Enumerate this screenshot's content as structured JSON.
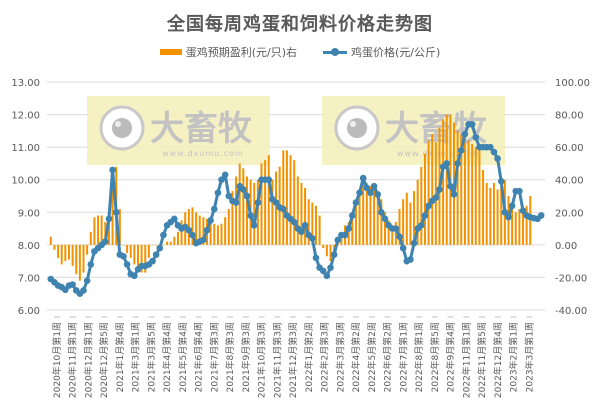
{
  "title": "全国每周鸡蛋和饲料价格走势图",
  "legend": {
    "bar_label": "蛋鸡预期盈利(元/只)右",
    "line_label": "鸡蛋价格(元/公斤)"
  },
  "watermark": {
    "text": "大畜牧",
    "url_text": "www.dxumu.com"
  },
  "colors": {
    "bar": "#F39200",
    "line": "#3F83B0",
    "grid": "#D9D9D9",
    "watermark_bg": "#F5EEB8"
  },
  "chart_data": {
    "type": "bar+line",
    "title": "全国每周鸡蛋和饲料价格走势图",
    "left_axis": {
      "label": "鸡蛋价格(元/公斤)",
      "min": 6,
      "max": 13,
      "ticks": [
        "6.00",
        "7.00",
        "8.00",
        "9.00",
        "10.00",
        "11.00",
        "12.00",
        "13.00"
      ]
    },
    "right_axis": {
      "label": "蛋鸡预期盈利(元/只)",
      "min": -40,
      "max": 100,
      "ticks": [
        "-40.00",
        "-20.00",
        "0.00",
        "20.00",
        "40.00",
        "60.00",
        "80.00",
        "100.00"
      ]
    },
    "x_tick_labels": [
      "2020年10月第1周",
      "2020年11月第1周",
      "2020年12月第1周",
      "2020年12月第5周",
      "2021年1月第4周",
      "2021年3月第1周",
      "2021年3月第5周",
      "2021年4月第4周",
      "2021年5月第4周",
      "2021年6月第4周",
      "2021年7月第3周",
      "2021年8月第3周",
      "2021年9月第3周",
      "2021年10月第3周",
      "2021年11月第3周",
      "2021年12月第3周",
      "2022年1月第2周",
      "2022年2月第3周",
      "2022年3月第3周",
      "2022年4月第2周",
      "2022年5月第2周",
      "2022年6月第2周",
      "2022年7月第1周",
      "2022年8月第1周",
      "2022年8月第5周",
      "2022年9月第4周",
      "2022年11月第1周",
      "2022年11月第5周",
      "2022年12月第4周",
      "2023年2月第1周",
      "2023年3月第1周"
    ],
    "grid": true,
    "legend_position": "top",
    "series": [
      {
        "name": "蛋鸡预期盈利(元/只)右",
        "type": "bar",
        "axis": "right",
        "values": [
          5,
          -3,
          -8,
          -12,
          -10,
          -9,
          -13,
          -18,
          -22,
          -17,
          -6,
          8,
          17,
          18,
          18,
          14,
          20,
          35,
          48,
          22,
          0,
          -5,
          -8,
          -12,
          -14,
          -17,
          -17,
          -8,
          0,
          0,
          0,
          0,
          2,
          2,
          5,
          8,
          15,
          20,
          22,
          23,
          20,
          18,
          17,
          16,
          14,
          13,
          12,
          13,
          17,
          22,
          33,
          42,
          50,
          47,
          42,
          40,
          38,
          40,
          50,
          52,
          55,
          40,
          45,
          48,
          58,
          58,
          55,
          52,
          42,
          38,
          35,
          28,
          26,
          24,
          18,
          -2,
          -7,
          -10,
          -8,
          3,
          8,
          12,
          14,
          20,
          27,
          33,
          40,
          38,
          36,
          34,
          32,
          28,
          20,
          15,
          12,
          14,
          22,
          28,
          32,
          26,
          33,
          40,
          48,
          56,
          64,
          68,
          63,
          72,
          77,
          80,
          80,
          75,
          70,
          68,
          66,
          64,
          62,
          60,
          58,
          46,
          38,
          35,
          38,
          34,
          40,
          40,
          30,
          22,
          20,
          22,
          22,
          24,
          30
        ],
        "note": "approximate, read from bar heights"
      },
      {
        "name": "鸡蛋价格(元/公斤)",
        "type": "line",
        "axis": "left",
        "values": [
          6.95,
          6.85,
          6.75,
          6.7,
          6.62,
          6.75,
          6.78,
          6.6,
          6.5,
          6.6,
          6.9,
          7.4,
          7.8,
          7.9,
          8.0,
          8.1,
          8.8,
          10.3,
          9.0,
          7.7,
          7.65,
          7.4,
          7.1,
          7.05,
          7.25,
          7.35,
          7.35,
          7.4,
          7.5,
          7.7,
          7.9,
          8.3,
          8.6,
          8.7,
          8.8,
          8.6,
          8.5,
          8.55,
          8.45,
          8.3,
          8.05,
          8.1,
          8.15,
          8.45,
          8.75,
          9.1,
          9.6,
          10.0,
          10.15,
          9.5,
          9.35,
          9.3,
          9.8,
          9.7,
          9.5,
          8.9,
          8.6,
          9.3,
          10.0,
          10.0,
          10.0,
          9.4,
          9.3,
          9.15,
          9.1,
          8.9,
          8.8,
          8.7,
          8.5,
          8.4,
          8.6,
          8.3,
          8.2,
          7.6,
          7.3,
          7.2,
          7.05,
          7.3,
          7.7,
          8.15,
          8.3,
          8.3,
          8.5,
          8.9,
          9.3,
          9.6,
          10.05,
          9.75,
          9.6,
          9.8,
          9.55,
          9.0,
          8.8,
          8.6,
          8.5,
          8.5,
          8.25,
          7.9,
          7.5,
          7.55,
          8.05,
          8.5,
          8.6,
          8.9,
          9.2,
          9.35,
          9.45,
          9.7,
          10.4,
          10.5,
          9.8,
          9.55,
          10.5,
          10.9,
          11.4,
          11.7,
          11.7,
          11.3,
          11.0,
          11.0,
          11.0,
          11.0,
          10.85,
          10.65,
          9.95,
          9.0,
          8.85,
          9.2,
          9.65,
          9.65,
          9.05,
          8.9,
          8.85,
          8.82,
          8.8,
          8.9
        ],
        "note": "approximate, read from line markers"
      }
    ]
  }
}
